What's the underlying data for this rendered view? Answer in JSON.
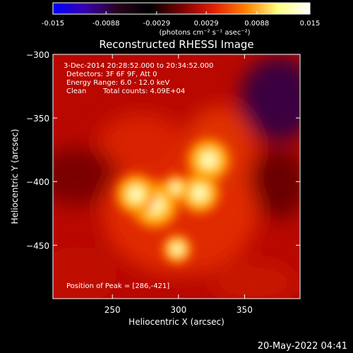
{
  "colorbar": {
    "ticks": [
      "-0.015",
      "-0.0088",
      "-0.0029",
      "0.0029",
      "0.0088",
      "0.015"
    ],
    "units": "(photons cm⁻² s⁻¹ asec⁻²)",
    "range": [
      -0.015,
      0.015
    ],
    "colors": [
      "#0000ff",
      "#3a00b0",
      "#2a0020",
      "#000000",
      "#7a0000",
      "#e02000",
      "#ff8000",
      "#ffff80",
      "#ffffff"
    ]
  },
  "annotations": {
    "time_range": "3-Dec-2014 20:28:52.000 to 20:34:52.000",
    "detectors": "Detectors: 3F 6F 9F, Att 0",
    "energy": "Energy Range: 6.0 - 12.0 keV",
    "clean_label": "Clean",
    "counts": "Total counts: 4.09E+04",
    "peak": "Position of Peak = [286,-421]"
  },
  "footer": {
    "timestamp": "20-May-2022 04:41"
  },
  "chart_data": {
    "type": "heatmap",
    "title": "Reconstructed RHESSI Image",
    "xlabel": "Heliocentric X (arcsec)",
    "ylabel": "Heliocentric Y (arcsec)",
    "xlim": [
      205,
      392
    ],
    "ylim": [
      -492,
      -300
    ],
    "xticks": [
      250,
      300,
      350
    ],
    "yticks": [
      -300,
      -350,
      -400,
      -450
    ],
    "peak": [
      286,
      -421
    ],
    "sources": [
      {
        "x": 282,
        "y": -418,
        "intensity": 1.0
      },
      {
        "x": 268,
        "y": -410,
        "intensity": 0.85
      },
      {
        "x": 316,
        "y": -409,
        "intensity": 0.85
      },
      {
        "x": 323,
        "y": -383,
        "intensity": 0.9
      },
      {
        "x": 298,
        "y": -405,
        "intensity": 0.55
      },
      {
        "x": 299,
        "y": -453,
        "intensity": 0.6
      }
    ]
  }
}
